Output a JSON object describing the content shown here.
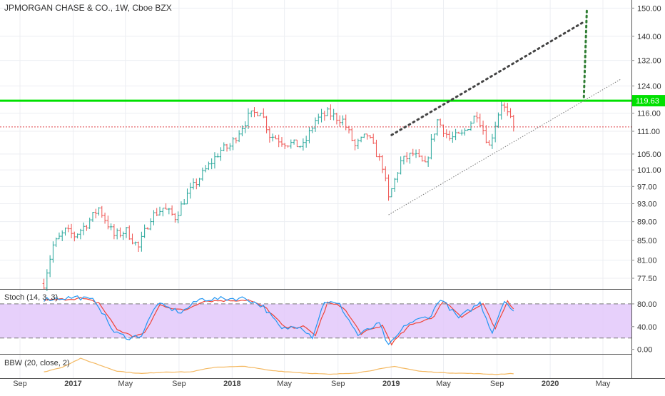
{
  "chart_data": {
    "type": "candlestick",
    "title": "JPMORGAN CHASE & CO., 1W, Cboe BZX",
    "colors": {
      "up": "#26a69a",
      "down": "#ef5350",
      "resistance": "#00e000",
      "current_line": "#e0454a",
      "pattern": "#444444",
      "stoch_k": "#2196f3",
      "stoch_d": "#ef4336",
      "stoch_band": "#e3c8fa",
      "bbw": "#f4b860",
      "grid": "#eceef2"
    },
    "price_axis": {
      "ticks": [
        "150.00",
        "140.00",
        "132.00",
        "124.00",
        "116.00",
        "111.00",
        "105.00",
        "101.00",
        "97.00",
        "93.00",
        "89.00",
        "85.00",
        "81.00",
        "77.50"
      ],
      "range": [
        75.5,
        153
      ],
      "scale": "log"
    },
    "resistance_level": 119.63,
    "resistance_label": "119.63",
    "current_price": 112.2,
    "x_axis": {
      "ticks": [
        "Sep",
        "2017",
        "May",
        "Sep",
        "2018",
        "May",
        "Sep",
        "2019",
        "May",
        "Sep",
        "2020",
        "May"
      ],
      "tick_dates": [
        "2016-09-01",
        "2017-01-01",
        "2017-05-01",
        "2017-09-01",
        "2018-01-01",
        "2018-05-01",
        "2018-09-01",
        "2019-01-01",
        "2019-05-01",
        "2019-09-01",
        "2020-01-01",
        "2020-05-01"
      ]
    },
    "price_anchors": [
      [
        "2016-10-26",
        76.5
      ],
      [
        "2016-11-16",
        84.0
      ],
      [
        "2016-12-14",
        87.0
      ],
      [
        "2017-01-04",
        86.0
      ],
      [
        "2017-02-01",
        88.5
      ],
      [
        "2017-03-01",
        92.0
      ],
      [
        "2017-04-05",
        86.0
      ],
      [
        "2017-05-03",
        87.0
      ],
      [
        "2017-05-31",
        83.5
      ],
      [
        "2017-06-28",
        90.0
      ],
      [
        "2017-07-26",
        92.0
      ],
      [
        "2017-08-23",
        90.0
      ],
      [
        "2017-09-20",
        95.0
      ],
      [
        "2017-10-25",
        100.0
      ],
      [
        "2017-12-06",
        106.0
      ],
      [
        "2017-12-27",
        107.0
      ],
      [
        "2018-02-07",
        115.0
      ],
      [
        "2018-03-07",
        117.0
      ],
      [
        "2018-03-28",
        110.0
      ],
      [
        "2018-05-02",
        108.0
      ],
      [
        "2018-06-13",
        107.0
      ],
      [
        "2018-07-11",
        114.0
      ],
      [
        "2018-08-08",
        116.0
      ],
      [
        "2018-09-12",
        114.0
      ],
      [
        "2018-10-10",
        107.0
      ],
      [
        "2018-11-07",
        110.0
      ],
      [
        "2018-12-12",
        102.0
      ],
      [
        "2018-12-26",
        94.0
      ],
      [
        "2019-01-23",
        103.0
      ],
      [
        "2019-02-20",
        105.0
      ],
      [
        "2019-03-20",
        102.0
      ],
      [
        "2019-04-17",
        114.0
      ],
      [
        "2019-05-15",
        109.0
      ],
      [
        "2019-06-12",
        110.0
      ],
      [
        "2019-07-17",
        116.0
      ],
      [
        "2019-08-14",
        107.0
      ],
      [
        "2019-09-11",
        119.0
      ],
      [
        "2019-10-09",
        112.2
      ]
    ],
    "bar_ranges": {
      "first": "2016-10-26",
      "last": "2019-10-09",
      "interval": "1W"
    },
    "annotations": {
      "lower_trendline": [
        [
          "2018-12-26",
          90.5
        ],
        [
          "2020-06-10",
          126.0
        ]
      ],
      "dotted_line": [
        [
          "2019-01-02",
          110.0
        ],
        [
          "2020-03-18",
          145.0
        ]
      ],
      "dotted_vertical": [
        [
          "2020-03-25",
          149.0
        ],
        [
          "2020-03-18",
          119.63
        ]
      ]
    },
    "stoch": {
      "label": "Stoch (14, 3, 3)",
      "ticks": [
        "80.00",
        "40.00",
        "0.00"
      ],
      "range": [
        -8,
        105
      ],
      "band": [
        20,
        80
      ],
      "k_anchors": [
        [
          "2016-10-26",
          88
        ],
        [
          "2017-01-11",
          92
        ],
        [
          "2017-02-22",
          85
        ],
        [
          "2017-04-05",
          30
        ],
        [
          "2017-05-10",
          20
        ],
        [
          "2017-06-07",
          25
        ],
        [
          "2017-07-12",
          80
        ],
        [
          "2017-09-06",
          65
        ],
        [
          "2017-10-18",
          88
        ],
        [
          "2018-01-31",
          90
        ],
        [
          "2018-03-14",
          75
        ],
        [
          "2018-04-25",
          35
        ],
        [
          "2018-06-06",
          42
        ],
        [
          "2018-07-04",
          22
        ],
        [
          "2018-08-01",
          85
        ],
        [
          "2018-09-05",
          78
        ],
        [
          "2018-10-17",
          25
        ],
        [
          "2018-12-05",
          45
        ],
        [
          "2018-12-26",
          5
        ],
        [
          "2019-02-06",
          45
        ],
        [
          "2019-04-03",
          60
        ],
        [
          "2019-04-24",
          90
        ],
        [
          "2019-06-05",
          55
        ],
        [
          "2019-07-24",
          82
        ],
        [
          "2019-08-21",
          30
        ],
        [
          "2019-09-18",
          88
        ],
        [
          "2019-10-09",
          65
        ]
      ],
      "d_anchors": [
        [
          "2016-10-26",
          86
        ],
        [
          "2017-01-18",
          90
        ],
        [
          "2017-03-01",
          82
        ],
        [
          "2017-04-12",
          35
        ],
        [
          "2017-05-17",
          23
        ],
        [
          "2017-06-14",
          28
        ],
        [
          "2017-07-19",
          78
        ],
        [
          "2017-09-13",
          68
        ],
        [
          "2017-10-25",
          85
        ],
        [
          "2018-02-07",
          87
        ],
        [
          "2018-03-21",
          72
        ],
        [
          "2018-05-02",
          38
        ],
        [
          "2018-06-13",
          40
        ],
        [
          "2018-07-11",
          25
        ],
        [
          "2018-08-08",
          82
        ],
        [
          "2018-09-12",
          75
        ],
        [
          "2018-10-24",
          28
        ],
        [
          "2018-12-12",
          42
        ],
        [
          "2019-01-02",
          10
        ],
        [
          "2019-02-13",
          42
        ],
        [
          "2019-04-10",
          58
        ],
        [
          "2019-05-01",
          86
        ],
        [
          "2019-06-12",
          58
        ],
        [
          "2019-07-31",
          80
        ],
        [
          "2019-08-28",
          35
        ],
        [
          "2019-09-25",
          85
        ],
        [
          "2019-10-09",
          72
        ]
      ]
    },
    "bbw": {
      "label": "BBW (20, close, 2)",
      "anchors": [
        [
          "2016-10-26",
          0.06
        ],
        [
          "2016-12-07",
          0.12
        ],
        [
          "2017-01-18",
          0.23
        ],
        [
          "2017-03-01",
          0.15
        ],
        [
          "2017-04-12",
          0.07
        ],
        [
          "2017-06-07",
          0.04
        ],
        [
          "2017-08-02",
          0.06
        ],
        [
          "2017-09-27",
          0.06
        ],
        [
          "2017-11-22",
          0.12
        ],
        [
          "2018-01-31",
          0.13
        ],
        [
          "2018-03-28",
          0.08
        ],
        [
          "2018-06-06",
          0.05
        ],
        [
          "2018-08-15",
          0.03
        ],
        [
          "2018-10-17",
          0.05
        ],
        [
          "2019-01-09",
          0.13
        ],
        [
          "2019-03-06",
          0.07
        ],
        [
          "2019-05-01",
          0.05
        ],
        [
          "2019-07-10",
          0.04
        ],
        [
          "2019-08-28",
          0.03
        ],
        [
          "2019-10-09",
          0.04
        ]
      ]
    }
  }
}
